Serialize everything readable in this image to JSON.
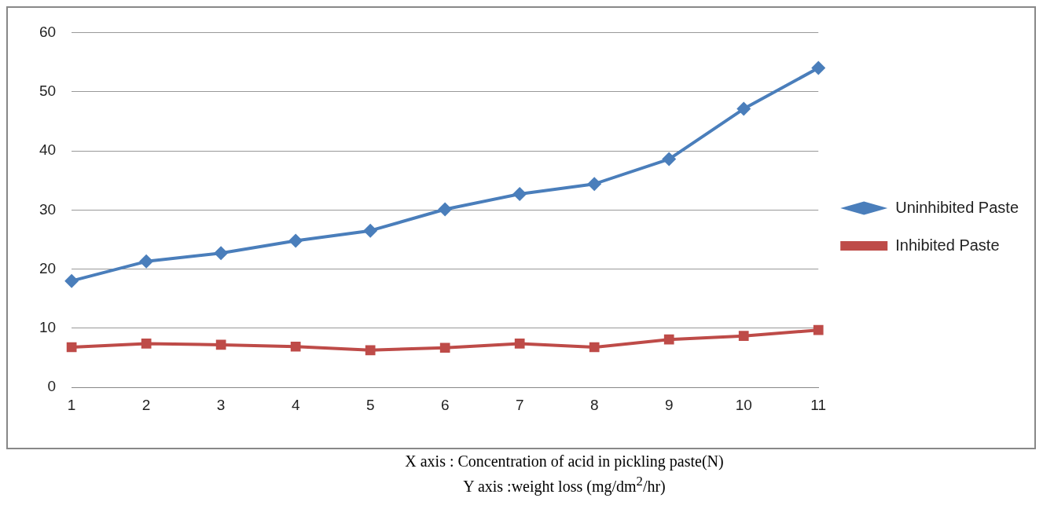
{
  "chart_data": {
    "type": "line",
    "categories": [
      "1",
      "2",
      "3",
      "4",
      "5",
      "6",
      "7",
      "8",
      "9",
      "10",
      "11"
    ],
    "series": [
      {
        "name": "Uninhibited Paste",
        "color": "#4a7ebb",
        "marker": "diamond",
        "values": [
          18.0,
          21.3,
          22.7,
          24.8,
          26.5,
          30.1,
          32.7,
          34.4,
          38.6,
          47.1,
          54.0
        ]
      },
      {
        "name": "Inhibited Paste",
        "color": "#be4b48",
        "marker": "square",
        "values": [
          6.8,
          7.4,
          7.2,
          6.9,
          6.3,
          6.7,
          7.4,
          6.8,
          8.1,
          8.7,
          9.7
        ]
      }
    ],
    "ylim": [
      0,
      60
    ],
    "yticks": [
      0,
      10,
      20,
      30,
      40,
      50,
      60
    ],
    "grid": "y",
    "legend": "right",
    "annotations": [
      "X axis : Concentration of acid in pickling paste(N)",
      "Y axis :weight loss (mg/dm$^{2}$/hr)"
    ]
  }
}
